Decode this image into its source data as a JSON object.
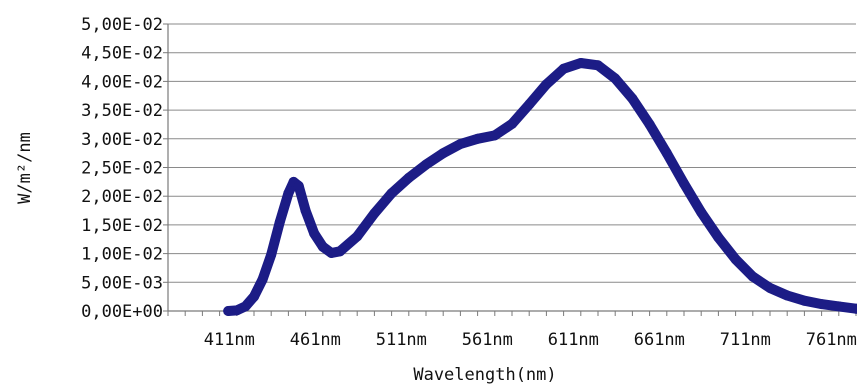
{
  "chart_data": {
    "type": "line",
    "title": "",
    "xlabel": "Wavelength(nm)",
    "ylabel": "W/m²/nm",
    "x_tick_labels": [
      "411nm",
      "461nm",
      "511nm",
      "561nm",
      "611nm",
      "661nm",
      "711nm",
      "761nm"
    ],
    "x_tick_values": [
      411,
      461,
      511,
      561,
      611,
      661,
      711,
      761
    ],
    "xlim": [
      380,
      780
    ],
    "y_tick_labels": [
      "0,00E+00",
      "5,00E-03",
      "1,00E-02",
      "1,50E-02",
      "2,00E-02",
      "2,50E-02",
      "3,00E-02",
      "3,50E-02",
      "4,00E-02",
      "4,50E-02",
      "5,00E-02"
    ],
    "ylim": [
      0,
      0.05
    ],
    "grid": true,
    "series": [
      {
        "color": "#1c1c86",
        "x": [
          415,
          420,
          425,
          430,
          435,
          440,
          445,
          450,
          453,
          456,
          460,
          465,
          470,
          475,
          480,
          490,
          500,
          510,
          520,
          530,
          540,
          550,
          560,
          570,
          580,
          590,
          600,
          610,
          620,
          630,
          640,
          650,
          660,
          670,
          680,
          690,
          700,
          710,
          720,
          730,
          740,
          750,
          760,
          770,
          780
        ],
        "y": [
          0.0,
          0.0001,
          0.0008,
          0.0025,
          0.0055,
          0.0098,
          0.0155,
          0.0205,
          0.0225,
          0.0218,
          0.0175,
          0.0135,
          0.0112,
          0.0101,
          0.0104,
          0.013,
          0.017,
          0.0205,
          0.0232,
          0.0255,
          0.0275,
          0.0291,
          0.03,
          0.0306,
          0.0326,
          0.036,
          0.0395,
          0.0422,
          0.0432,
          0.0428,
          0.0405,
          0.037,
          0.0325,
          0.0275,
          0.0222,
          0.0172,
          0.0128,
          0.009,
          0.006,
          0.004,
          0.0027,
          0.0018,
          0.0012,
          0.0008,
          0.0004
        ]
      }
    ]
  }
}
